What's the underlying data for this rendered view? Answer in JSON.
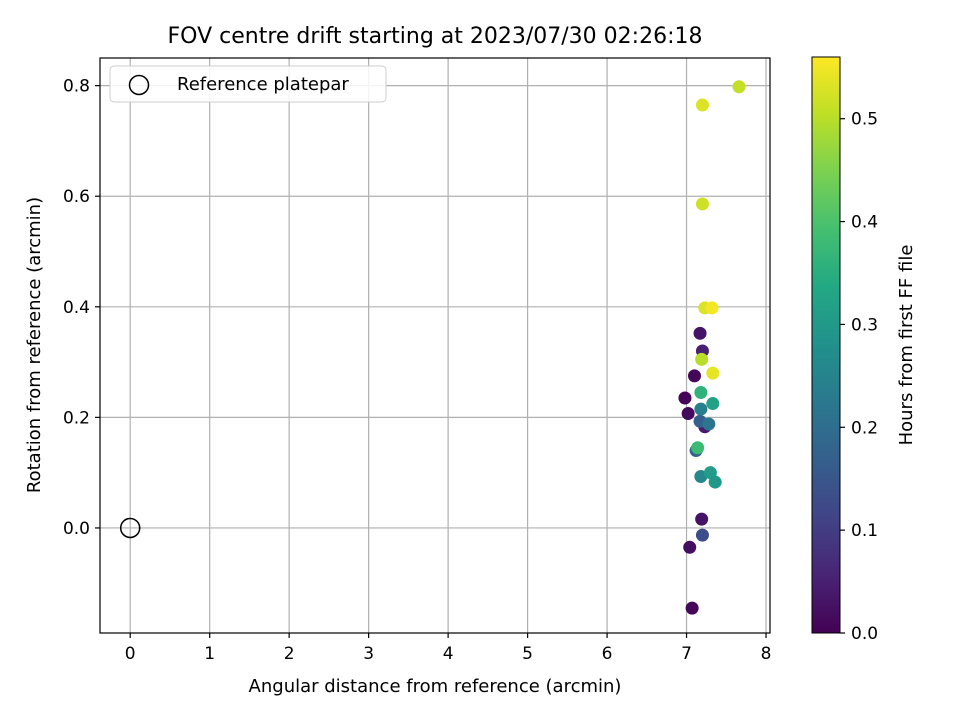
{
  "chart_data": {
    "type": "scatter",
    "title": "FOV centre drift starting at 2023/07/30 02:26:18",
    "xlabel": "Angular distance from reference (arcmin)",
    "ylabel": "Rotation from reference (arcmin)",
    "xlim": [
      -0.38,
      8.05
    ],
    "ylim": [
      -0.19,
      0.85
    ],
    "xticks": [
      0,
      1,
      2,
      3,
      4,
      5,
      6,
      7,
      8
    ],
    "xtick_labels": [
      "0",
      "1",
      "2",
      "3",
      "4",
      "5",
      "6",
      "7",
      "8"
    ],
    "yticks": [
      0.0,
      0.2,
      0.4,
      0.6,
      0.8
    ],
    "ytick_labels": [
      "0.0",
      "0.2",
      "0.4",
      "0.6",
      "0.8"
    ],
    "grid": true,
    "legend": {
      "position": "top-left",
      "entries": [
        "Reference platepar"
      ]
    },
    "reference_point": {
      "x": 0,
      "y": 0,
      "label": "Reference platepar"
    },
    "colorbar": {
      "label": "Hours from first FF file",
      "range": [
        0.0,
        0.56
      ],
      "ticks": [
        0.0,
        0.1,
        0.2,
        0.3,
        0.4,
        0.5
      ],
      "tick_labels": [
        "0.0",
        "0.1",
        "0.2",
        "0.3",
        "0.4",
        "0.5"
      ],
      "colormap": "viridis"
    },
    "points": [
      {
        "x": 7.07,
        "y": -0.145,
        "c": 0.01
      },
      {
        "x": 7.04,
        "y": -0.035,
        "c": 0.02
      },
      {
        "x": 7.19,
        "y": 0.016,
        "c": 0.03
      },
      {
        "x": 6.98,
        "y": 0.235,
        "c": 0.005
      },
      {
        "x": 7.02,
        "y": 0.207,
        "c": 0.015
      },
      {
        "x": 7.1,
        "y": 0.275,
        "c": 0.01
      },
      {
        "x": 7.17,
        "y": 0.352,
        "c": 0.03
      },
      {
        "x": 7.2,
        "y": 0.32,
        "c": 0.05
      },
      {
        "x": 7.23,
        "y": 0.183,
        "c": 0.04
      },
      {
        "x": 7.2,
        "y": -0.013,
        "c": 0.13
      },
      {
        "x": 7.12,
        "y": 0.14,
        "c": 0.18
      },
      {
        "x": 7.17,
        "y": 0.193,
        "c": 0.17
      },
      {
        "x": 7.28,
        "y": 0.188,
        "c": 0.22
      },
      {
        "x": 7.18,
        "y": 0.093,
        "c": 0.26
      },
      {
        "x": 7.18,
        "y": 0.215,
        "c": 0.24
      },
      {
        "x": 7.3,
        "y": 0.1,
        "c": 0.31
      },
      {
        "x": 7.36,
        "y": 0.083,
        "c": 0.3
      },
      {
        "x": 7.33,
        "y": 0.225,
        "c": 0.32
      },
      {
        "x": 7.18,
        "y": 0.245,
        "c": 0.36
      },
      {
        "x": 7.14,
        "y": 0.145,
        "c": 0.38
      },
      {
        "x": 7.19,
        "y": 0.305,
        "c": 0.5
      },
      {
        "x": 7.33,
        "y": 0.28,
        "c": 0.54
      },
      {
        "x": 7.23,
        "y": 0.398,
        "c": 0.53
      },
      {
        "x": 7.32,
        "y": 0.398,
        "c": 0.55
      },
      {
        "x": 7.2,
        "y": 0.586,
        "c": 0.52
      },
      {
        "x": 7.2,
        "y": 0.765,
        "c": 0.53
      },
      {
        "x": 7.66,
        "y": 0.798,
        "c": 0.51
      }
    ]
  }
}
